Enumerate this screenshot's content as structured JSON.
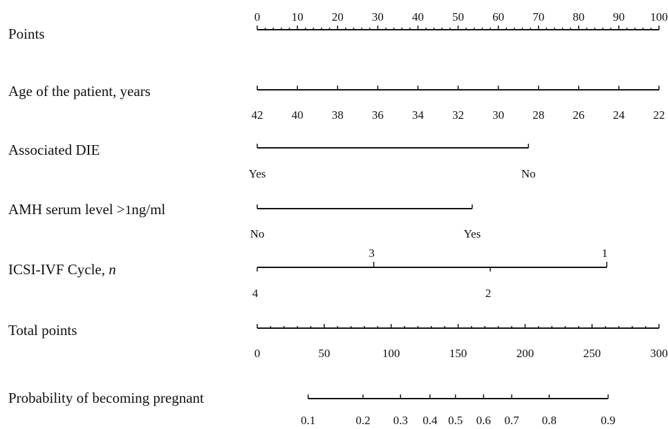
{
  "chart_data": {
    "type": "nomogram",
    "rows": [
      {
        "label": "Points",
        "points_range": [
          0,
          100
        ],
        "ticks": [
          {
            "points": 0,
            "label": "0"
          },
          {
            "points": 10,
            "label": "10"
          },
          {
            "points": 20,
            "label": "20"
          },
          {
            "points": 30,
            "label": "30"
          },
          {
            "points": 40,
            "label": "40"
          },
          {
            "points": 50,
            "label": "50"
          },
          {
            "points": 60,
            "label": "60"
          },
          {
            "points": 70,
            "label": "70"
          },
          {
            "points": 80,
            "label": "80"
          },
          {
            "points": 90,
            "label": "90"
          },
          {
            "points": 100,
            "label": "100"
          }
        ],
        "minor_ticks_per_major": 5
      },
      {
        "label": "Age of the patient, years",
        "points_range": [
          0,
          100
        ],
        "ticks": [
          {
            "points": 0,
            "label": "42"
          },
          {
            "points": 10,
            "label": "40"
          },
          {
            "points": 20,
            "label": "38"
          },
          {
            "points": 30,
            "label": "36"
          },
          {
            "points": 40,
            "label": "34"
          },
          {
            "points": 50,
            "label": "32"
          },
          {
            "points": 60,
            "label": "30"
          },
          {
            "points": 70,
            "label": "28"
          },
          {
            "points": 80,
            "label": "26"
          },
          {
            "points": 90,
            "label": "24"
          },
          {
            "points": 100,
            "label": "22"
          }
        ]
      },
      {
        "label": "Associated DIE",
        "points_range": [
          0,
          67.5
        ],
        "ticks": [
          {
            "points": 0,
            "label": "Yes"
          },
          {
            "points": 67.5,
            "label": "No"
          }
        ]
      },
      {
        "label": "AMH serum level >1ng/ml",
        "label_prefix": "AMH serum level >",
        "label_number": "1",
        "label_unit": "ng/ml",
        "points_range": [
          0,
          53.5
        ],
        "ticks": [
          {
            "points": 0,
            "label": "No"
          },
          {
            "points": 53.5,
            "label": "Yes"
          }
        ]
      },
      {
        "label": "ICSI-IVF Cycle, n",
        "label_main": "ICSI-IVF Cycle, ",
        "label_italic": "n",
        "points_range": [
          0,
          87
        ],
        "ticks": [
          {
            "points": 0,
            "label": "4",
            "position": "below"
          },
          {
            "points": 29,
            "label": "3",
            "position": "above"
          },
          {
            "points": 58,
            "label": "2",
            "position": "below"
          },
          {
            "points": 87,
            "label": "1",
            "position": "above"
          }
        ]
      },
      {
        "label": "Total points",
        "points_range": [
          0,
          300
        ],
        "ticks": [
          {
            "value": 0,
            "label": "0"
          },
          {
            "value": 50,
            "label": "50"
          },
          {
            "value": 100,
            "label": "100"
          },
          {
            "value": 150,
            "label": "150"
          },
          {
            "value": 200,
            "label": "200"
          },
          {
            "value": 250,
            "label": "250"
          },
          {
            "value": 300,
            "label": "300"
          }
        ],
        "minor_ticks_per_major": 5
      },
      {
        "label": "Probability of becoming pregnant",
        "total_points_range": [
          38,
          262
        ],
        "ticks": [
          {
            "total_points": 38,
            "label": "0.1"
          },
          {
            "total_points": 79,
            "label": "0.2"
          },
          {
            "total_points": 107,
            "label": "0.3"
          },
          {
            "total_points": 129,
            "label": "0.4"
          },
          {
            "total_points": 148,
            "label": "0.5"
          },
          {
            "total_points": 169,
            "label": "0.6"
          },
          {
            "total_points": 190,
            "label": "0.7"
          },
          {
            "total_points": 218,
            "label": "0.8"
          },
          {
            "total_points": 262,
            "label": "0.9"
          }
        ]
      }
    ]
  }
}
